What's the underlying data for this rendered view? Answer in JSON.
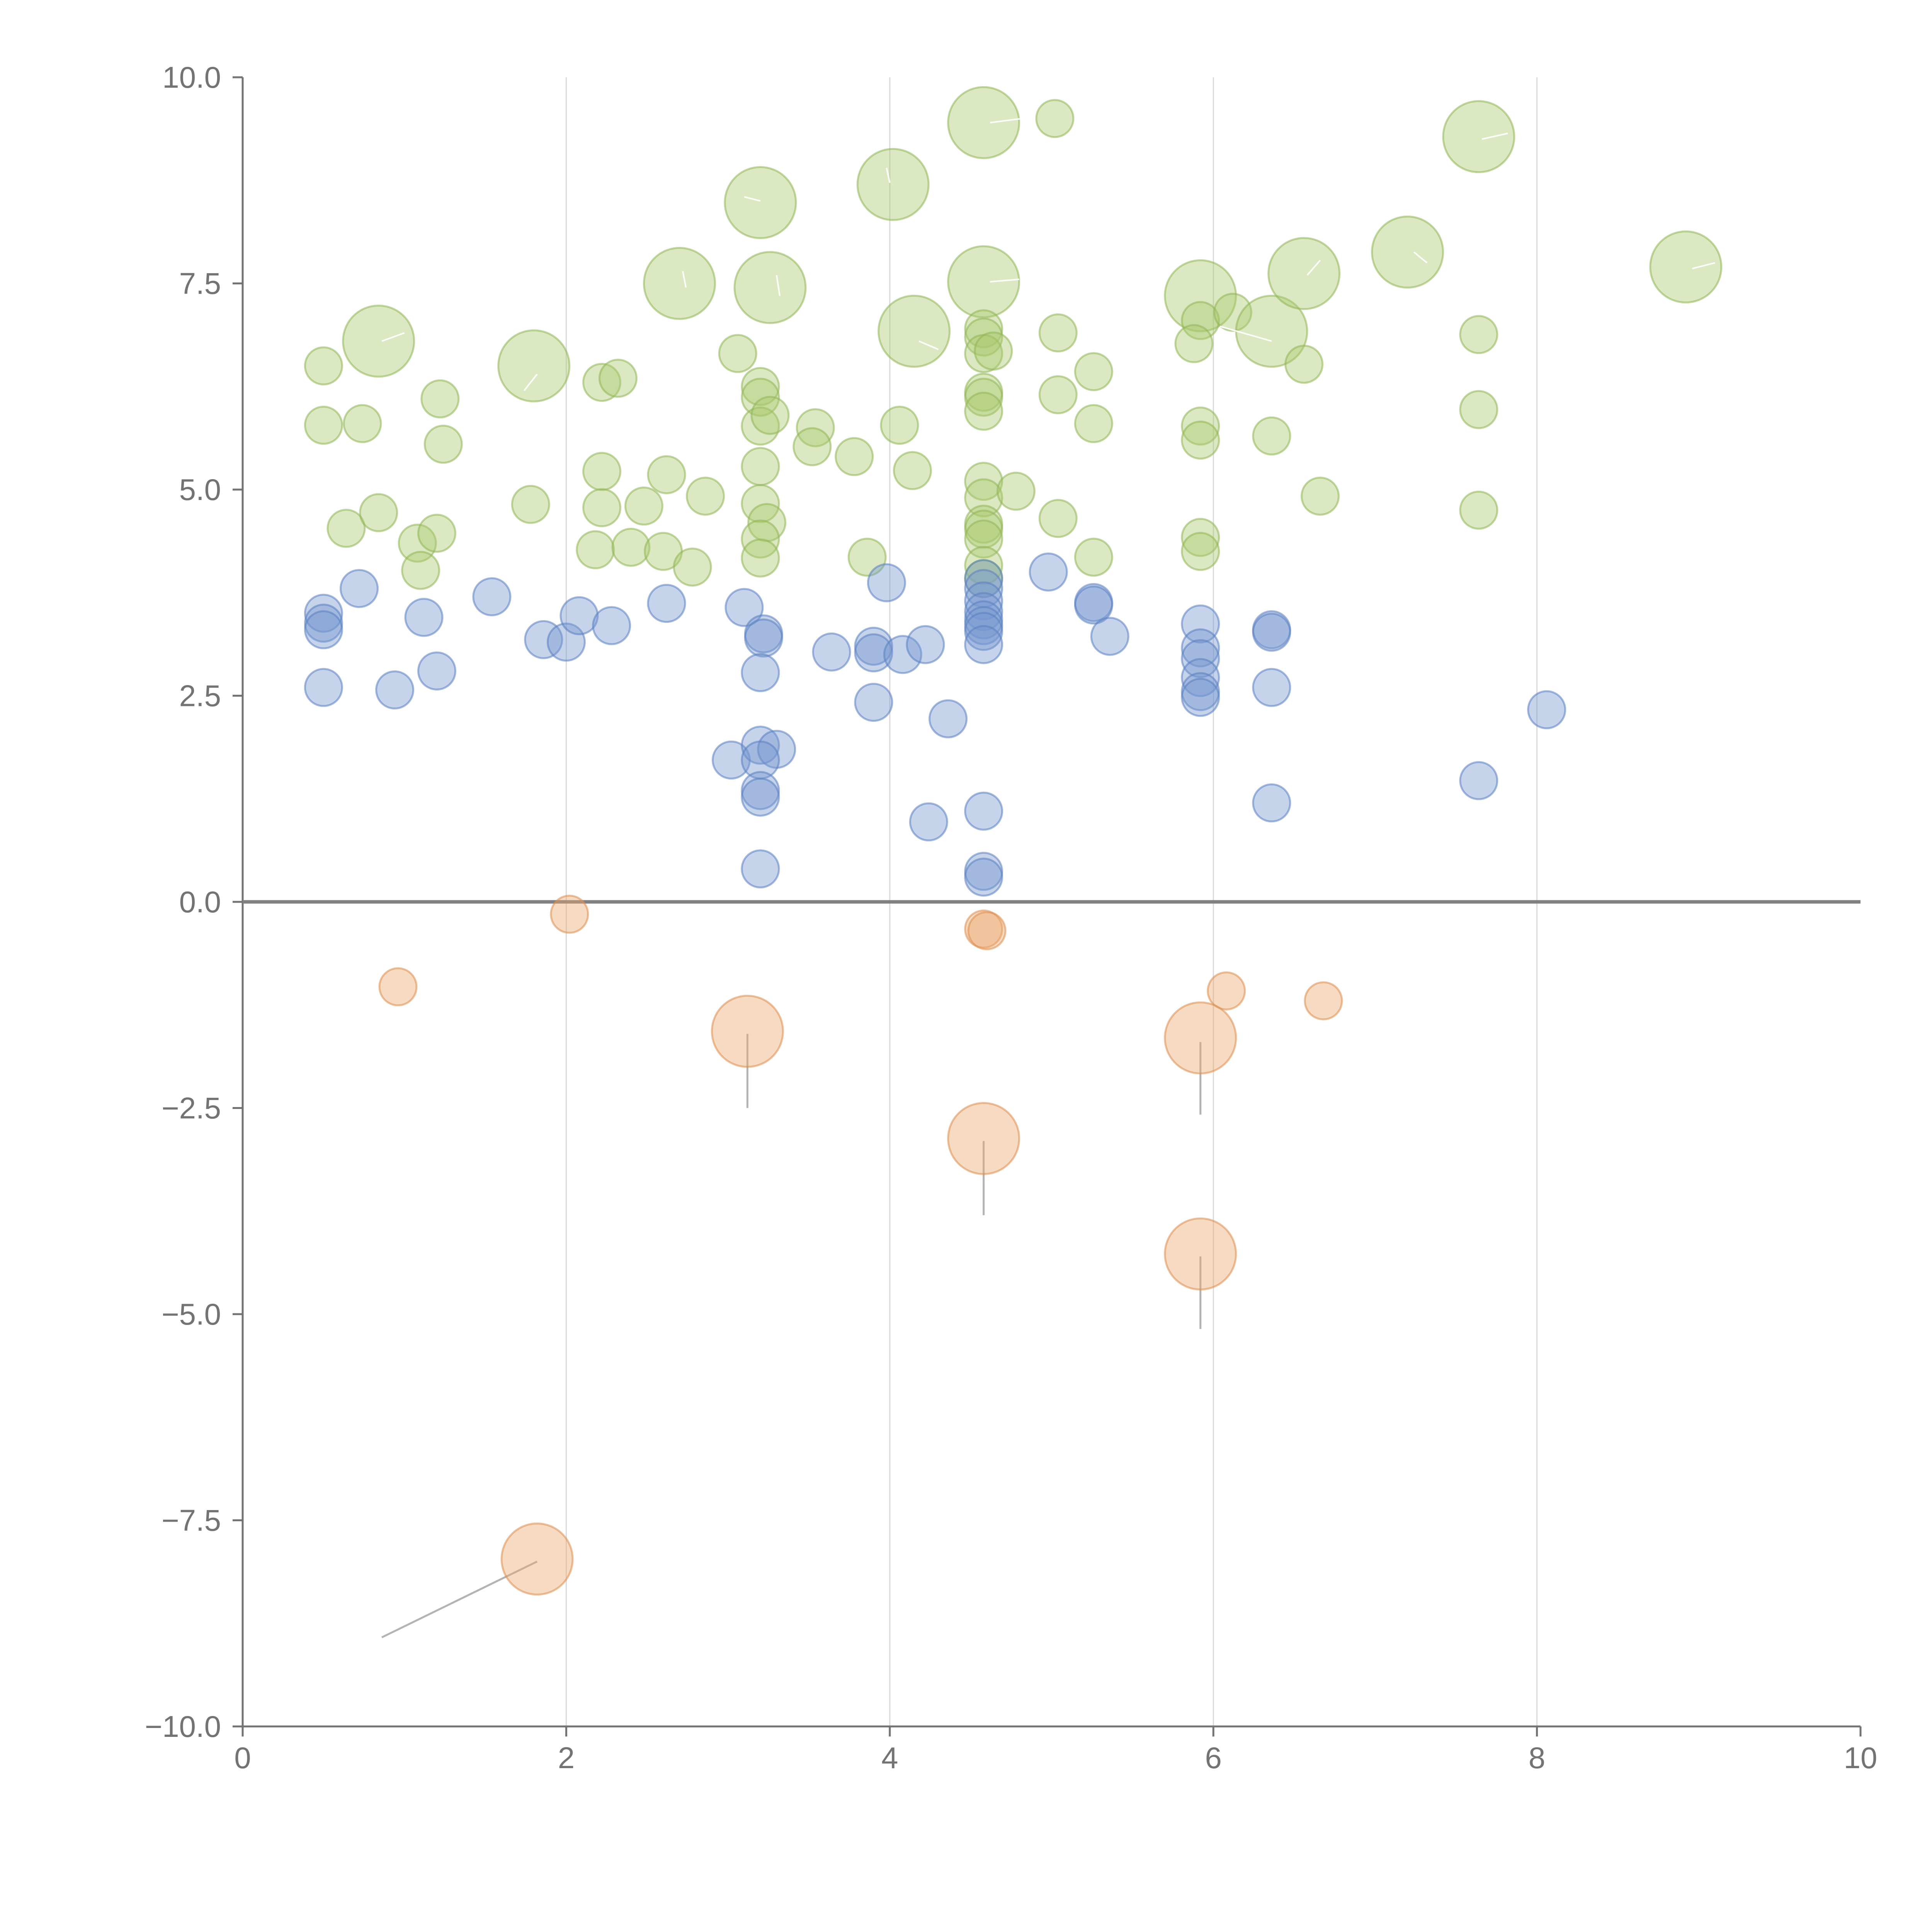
{
  "chart_data": {
    "type": "scatter",
    "title": "",
    "xlabel": "",
    "ylabel": "",
    "xlim": [
      0,
      10
    ],
    "ylim": [
      -10,
      10
    ],
    "grid": "vertical",
    "x_ticks": [
      0,
      2,
      4,
      6,
      8,
      10
    ],
    "x_tick_labels": [
      "0",
      "2",
      "4",
      "6",
      "8",
      "10"
    ],
    "y_ticks": [
      10,
      7.5,
      5,
      2.5,
      0,
      -2.5,
      -5,
      -7.5,
      -10
    ],
    "y_tick_labels": [
      "10.0",
      "7.5",
      "5.0",
      "2.5",
      "0.0",
      "−2.5",
      "−5.0",
      "−7.5",
      "−10.0"
    ],
    "series": [
      {
        "name": "green",
        "color": "#a9c76d",
        "stroke": "#8fb455",
        "points": [
          {
            "x": 0.5,
            "y": 6.5,
            "s": 1
          },
          {
            "x": 0.5,
            "y": 5.78,
            "s": 1
          },
          {
            "x": 0.74,
            "y": 5.8,
            "s": 1
          },
          {
            "x": 0.64,
            "y": 4.53,
            "s": 1
          },
          {
            "x": 0.84,
            "y": 4.72,
            "s": 1
          },
          {
            "x": 1.08,
            "y": 4.35,
            "s": 1
          },
          {
            "x": 1.1,
            "y": 4.02,
            "s": 1
          },
          {
            "x": 1.2,
            "y": 4.47,
            "s": 1
          },
          {
            "x": 1.22,
            "y": 6.1,
            "s": 1
          },
          {
            "x": 1.24,
            "y": 5.55,
            "s": 1
          },
          {
            "x": 0.84,
            "y": 6.8,
            "s": 2
          },
          {
            "x": 1.8,
            "y": 6.5,
            "s": 2
          },
          {
            "x": 1.78,
            "y": 4.82,
            "s": 1
          },
          {
            "x": 2.22,
            "y": 6.3,
            "s": 1
          },
          {
            "x": 2.32,
            "y": 6.35,
            "s": 1
          },
          {
            "x": 2.22,
            "y": 5.22,
            "s": 1
          },
          {
            "x": 2.22,
            "y": 4.78,
            "s": 1
          },
          {
            "x": 2.18,
            "y": 4.27,
            "s": 1
          },
          {
            "x": 2.4,
            "y": 4.3,
            "s": 1
          },
          {
            "x": 2.48,
            "y": 4.8,
            "s": 1
          },
          {
            "x": 2.62,
            "y": 5.18,
            "s": 1
          },
          {
            "x": 2.6,
            "y": 4.25,
            "s": 1
          },
          {
            "x": 2.78,
            "y": 4.06,
            "s": 1
          },
          {
            "x": 2.86,
            "y": 4.92,
            "s": 1
          },
          {
            "x": 2.7,
            "y": 7.5,
            "s": 2
          },
          {
            "x": 3.06,
            "y": 6.65,
            "s": 1
          },
          {
            "x": 3.2,
            "y": 6.25,
            "s": 1
          },
          {
            "x": 3.2,
            "y": 6.12,
            "s": 1
          },
          {
            "x": 3.2,
            "y": 5.77,
            "s": 1
          },
          {
            "x": 3.26,
            "y": 5.9,
            "s": 1
          },
          {
            "x": 3.2,
            "y": 5.28,
            "s": 1
          },
          {
            "x": 3.2,
            "y": 4.83,
            "s": 1
          },
          {
            "x": 3.24,
            "y": 4.6,
            "s": 1
          },
          {
            "x": 3.2,
            "y": 4.4,
            "s": 1
          },
          {
            "x": 3.2,
            "y": 4.17,
            "s": 1
          },
          {
            "x": 3.2,
            "y": 8.48,
            "s": 2
          },
          {
            "x": 3.26,
            "y": 7.45,
            "s": 2
          },
          {
            "x": 3.54,
            "y": 5.75,
            "s": 1
          },
          {
            "x": 3.52,
            "y": 5.52,
            "s": 1
          },
          {
            "x": 3.78,
            "y": 5.4,
            "s": 1
          },
          {
            "x": 3.86,
            "y": 4.18,
            "s": 1
          },
          {
            "x": 4.02,
            "y": 8.7,
            "s": 2
          },
          {
            "x": 4.06,
            "y": 5.78,
            "s": 1
          },
          {
            "x": 4.14,
            "y": 5.23,
            "s": 1
          },
          {
            "x": 4.15,
            "y": 6.92,
            "s": 2
          },
          {
            "x": 4.58,
            "y": 9.45,
            "s": 2
          },
          {
            "x": 5.02,
            "y": 9.5,
            "s": 1
          },
          {
            "x": 4.58,
            "y": 7.52,
            "s": 2
          },
          {
            "x": 4.58,
            "y": 6.95,
            "s": 1
          },
          {
            "x": 4.58,
            "y": 6.85,
            "s": 1
          },
          {
            "x": 4.58,
            "y": 6.65,
            "s": 1
          },
          {
            "x": 4.64,
            "y": 6.68,
            "s": 1
          },
          {
            "x": 4.58,
            "y": 6.18,
            "s": 1
          },
          {
            "x": 4.58,
            "y": 6.12,
            "s": 1
          },
          {
            "x": 4.58,
            "y": 5.95,
            "s": 1
          },
          {
            "x": 4.58,
            "y": 5.1,
            "s": 1
          },
          {
            "x": 4.58,
            "y": 4.9,
            "s": 1
          },
          {
            "x": 4.58,
            "y": 4.58,
            "s": 1
          },
          {
            "x": 4.58,
            "y": 4.52,
            "s": 1
          },
          {
            "x": 4.58,
            "y": 4.4,
            "s": 1
          },
          {
            "x": 4.58,
            "y": 4.08,
            "s": 1
          },
          {
            "x": 4.58,
            "y": 3.92,
            "s": 1
          },
          {
            "x": 4.78,
            "y": 4.98,
            "s": 1
          },
          {
            "x": 5.04,
            "y": 6.9,
            "s": 1
          },
          {
            "x": 5.04,
            "y": 6.15,
            "s": 1
          },
          {
            "x": 5.04,
            "y": 4.65,
            "s": 1
          },
          {
            "x": 5.26,
            "y": 6.43,
            "s": 1
          },
          {
            "x": 5.26,
            "y": 5.8,
            "s": 1
          },
          {
            "x": 5.26,
            "y": 4.18,
            "s": 1
          },
          {
            "x": 5.92,
            "y": 7.35,
            "s": 2
          },
          {
            "x": 5.92,
            "y": 7.05,
            "s": 1
          },
          {
            "x": 5.88,
            "y": 6.77,
            "s": 1
          },
          {
            "x": 5.92,
            "y": 5.77,
            "s": 1
          },
          {
            "x": 5.92,
            "y": 5.6,
            "s": 1
          },
          {
            "x": 5.92,
            "y": 4.42,
            "s": 1
          },
          {
            "x": 5.92,
            "y": 4.25,
            "s": 1
          },
          {
            "x": 6.12,
            "y": 7.15,
            "s": 1
          },
          {
            "x": 6.36,
            "y": 6.92,
            "s": 2
          },
          {
            "x": 6.56,
            "y": 7.62,
            "s": 2
          },
          {
            "x": 6.56,
            "y": 6.52,
            "s": 1
          },
          {
            "x": 6.36,
            "y": 5.65,
            "s": 1
          },
          {
            "x": 6.66,
            "y": 4.92,
            "s": 1
          },
          {
            "x": 7.2,
            "y": 7.88,
            "s": 2
          },
          {
            "x": 7.64,
            "y": 9.28,
            "s": 2
          },
          {
            "x": 7.64,
            "y": 6.88,
            "s": 1
          },
          {
            "x": 7.64,
            "y": 5.97,
            "s": 1
          },
          {
            "x": 7.64,
            "y": 4.75,
            "s": 1
          },
          {
            "x": 8.92,
            "y": 7.7,
            "s": 2
          }
        ]
      },
      {
        "name": "blue",
        "color": "#7496cf",
        "stroke": "#5a7fbf",
        "points": [
          {
            "x": 0.5,
            "y": 3.5,
            "s": 1
          },
          {
            "x": 0.5,
            "y": 3.38,
            "s": 1
          },
          {
            "x": 0.5,
            "y": 3.3,
            "s": 1
          },
          {
            "x": 0.5,
            "y": 2.6,
            "s": 1
          },
          {
            "x": 0.72,
            "y": 3.8,
            "s": 1
          },
          {
            "x": 0.94,
            "y": 2.57,
            "s": 1
          },
          {
            "x": 1.12,
            "y": 3.45,
            "s": 1
          },
          {
            "x": 1.2,
            "y": 2.8,
            "s": 1
          },
          {
            "x": 1.54,
            "y": 3.7,
            "s": 1
          },
          {
            "x": 1.86,
            "y": 3.18,
            "s": 1
          },
          {
            "x": 2.0,
            "y": 3.15,
            "s": 1
          },
          {
            "x": 2.08,
            "y": 3.47,
            "s": 1
          },
          {
            "x": 2.28,
            "y": 3.35,
            "s": 1
          },
          {
            "x": 2.62,
            "y": 3.62,
            "s": 1
          },
          {
            "x": 3.1,
            "y": 3.57,
            "s": 1
          },
          {
            "x": 3.22,
            "y": 3.25,
            "s": 1
          },
          {
            "x": 3.22,
            "y": 3.2,
            "s": 1
          },
          {
            "x": 3.2,
            "y": 2.78,
            "s": 1
          },
          {
            "x": 3.02,
            "y": 1.72,
            "s": 1
          },
          {
            "x": 3.2,
            "y": 1.9,
            "s": 1
          },
          {
            "x": 3.3,
            "y": 1.85,
            "s": 1
          },
          {
            "x": 3.2,
            "y": 1.72,
            "s": 1
          },
          {
            "x": 3.2,
            "y": 1.35,
            "s": 1
          },
          {
            "x": 3.2,
            "y": 1.27,
            "s": 1
          },
          {
            "x": 3.2,
            "y": 0.4,
            "s": 1
          },
          {
            "x": 3.64,
            "y": 3.03,
            "s": 1
          },
          {
            "x": 3.9,
            "y": 3.1,
            "s": 1
          },
          {
            "x": 3.9,
            "y": 3.02,
            "s": 1
          },
          {
            "x": 4.08,
            "y": 3.0,
            "s": 1
          },
          {
            "x": 4.22,
            "y": 3.12,
            "s": 1
          },
          {
            "x": 3.98,
            "y": 3.87,
            "s": 1
          },
          {
            "x": 3.9,
            "y": 2.42,
            "s": 1
          },
          {
            "x": 4.36,
            "y": 2.22,
            "s": 1
          },
          {
            "x": 4.24,
            "y": 0.97,
            "s": 1
          },
          {
            "x": 4.58,
            "y": 3.92,
            "s": 1
          },
          {
            "x": 4.58,
            "y": 3.8,
            "s": 1
          },
          {
            "x": 4.58,
            "y": 3.65,
            "s": 1
          },
          {
            "x": 4.58,
            "y": 3.52,
            "s": 1
          },
          {
            "x": 4.58,
            "y": 3.42,
            "s": 1
          },
          {
            "x": 4.58,
            "y": 3.35,
            "s": 1
          },
          {
            "x": 4.58,
            "y": 3.28,
            "s": 1
          },
          {
            "x": 4.58,
            "y": 3.12,
            "s": 1
          },
          {
            "x": 4.58,
            "y": 1.1,
            "s": 1
          },
          {
            "x": 4.58,
            "y": 0.37,
            "s": 1
          },
          {
            "x": 4.58,
            "y": 0.3,
            "s": 1
          },
          {
            "x": 4.98,
            "y": 4.0,
            "s": 1
          },
          {
            "x": 5.26,
            "y": 3.63,
            "s": 1
          },
          {
            "x": 5.26,
            "y": 3.6,
            "s": 1
          },
          {
            "x": 5.36,
            "y": 3.22,
            "s": 1
          },
          {
            "x": 5.92,
            "y": 3.37,
            "s": 1
          },
          {
            "x": 5.92,
            "y": 3.08,
            "s": 1
          },
          {
            "x": 5.92,
            "y": 2.95,
            "s": 1
          },
          {
            "x": 5.92,
            "y": 2.72,
            "s": 1
          },
          {
            "x": 5.92,
            "y": 2.55,
            "s": 1
          },
          {
            "x": 5.92,
            "y": 2.48,
            "s": 1
          },
          {
            "x": 6.36,
            "y": 3.3,
            "s": 1
          },
          {
            "x": 6.36,
            "y": 3.27,
            "s": 1
          },
          {
            "x": 6.36,
            "y": 2.6,
            "s": 1
          },
          {
            "x": 6.36,
            "y": 1.2,
            "s": 1
          },
          {
            "x": 7.64,
            "y": 1.47,
            "s": 1
          },
          {
            "x": 8.06,
            "y": 2.33,
            "s": 1
          }
        ]
      },
      {
        "name": "orange",
        "color": "#e9a76b",
        "stroke": "#dc8e4e",
        "points": [
          {
            "x": 0.96,
            "y": -1.03,
            "s": 1
          },
          {
            "x": 2.02,
            "y": -0.15,
            "s": 1
          },
          {
            "x": 4.58,
            "y": -0.33,
            "s": 1
          },
          {
            "x": 4.6,
            "y": -0.35,
            "s": 1
          },
          {
            "x": 6.08,
            "y": -1.08,
            "s": 1
          },
          {
            "x": 6.68,
            "y": -1.2,
            "s": 1
          },
          {
            "x": 3.12,
            "y": -1.57,
            "s": 2
          },
          {
            "x": 5.92,
            "y": -1.65,
            "s": 2
          },
          {
            "x": 4.58,
            "y": -2.87,
            "s": 2
          },
          {
            "x": 5.92,
            "y": -4.27,
            "s": 2
          },
          {
            "x": 1.82,
            "y": -7.97,
            "s": 2
          }
        ]
      }
    ],
    "callouts": [
      {
        "from": [
          1.82,
          -8.0
        ],
        "to": [
          0.86,
          -8.92
        ]
      },
      {
        "from": [
          3.12,
          -1.6
        ],
        "to": [
          3.12,
          -2.5
        ]
      },
      {
        "from": [
          4.58,
          -2.9
        ],
        "to": [
          4.58,
          -3.8
        ]
      },
      {
        "from": [
          5.92,
          -1.7
        ],
        "to": [
          5.92,
          -2.58
        ]
      },
      {
        "from": [
          5.92,
          -4.3
        ],
        "to": [
          5.92,
          -5.18
        ]
      }
    ],
    "inner_marks": [
      {
        "from": [
          0.86,
          6.8
        ],
        "to": [
          1.0,
          6.9
        ]
      },
      {
        "from": [
          1.74,
          6.2
        ],
        "to": [
          1.82,
          6.4
        ]
      },
      {
        "from": [
          2.72,
          7.65
        ],
        "to": [
          2.74,
          7.45
        ]
      },
      {
        "from": [
          3.1,
          8.55
        ],
        "to": [
          3.2,
          8.5
        ]
      },
      {
        "from": [
          3.3,
          7.6
        ],
        "to": [
          3.32,
          7.35
        ]
      },
      {
        "from": [
          3.98,
          8.9
        ],
        "to": [
          4.0,
          8.72
        ]
      },
      {
        "from": [
          4.18,
          6.8
        ],
        "to": [
          4.3,
          6.7
        ]
      },
      {
        "from": [
          4.62,
          9.45
        ],
        "to": [
          4.82,
          9.5
        ]
      },
      {
        "from": [
          4.62,
          7.52
        ],
        "to": [
          4.8,
          7.55
        ]
      },
      {
        "from": [
          6.04,
          6.98
        ],
        "to": [
          6.36,
          6.8
        ]
      },
      {
        "from": [
          6.58,
          7.6
        ],
        "to": [
          6.66,
          7.78
        ]
      },
      {
        "from": [
          7.24,
          7.88
        ],
        "to": [
          7.32,
          7.75
        ]
      },
      {
        "from": [
          7.66,
          9.25
        ],
        "to": [
          7.82,
          9.32
        ]
      },
      {
        "from": [
          8.96,
          7.68
        ],
        "to": [
          9.1,
          7.75
        ]
      }
    ]
  }
}
